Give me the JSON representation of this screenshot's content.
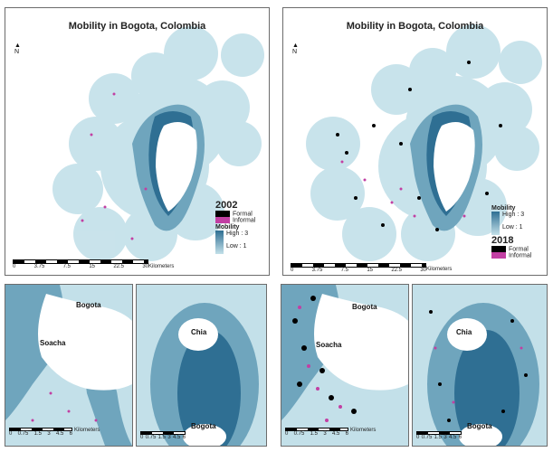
{
  "maps": {
    "top_left": {
      "title": "Mobility in Bogota, Colombia",
      "north": "N",
      "year": "2002",
      "legend": {
        "formal": "Formal",
        "informal": "Informal",
        "mobility_title": "Mobility",
        "high": "High : 3",
        "low": "Low : 1"
      },
      "scale": {
        "ticks": [
          "0",
          "3.75",
          "7.5",
          "15",
          "22.5",
          "30"
        ],
        "unit": "Kilometers"
      }
    },
    "top_right": {
      "title": "Mobility in Bogota, Colombia",
      "north": "N",
      "year": "2018",
      "legend": {
        "formal": "Formal",
        "informal": "Informal",
        "mobility_title": "Mobility",
        "high": "High : 3",
        "low": "Low : 1"
      },
      "scale": {
        "ticks": [
          "0",
          "3.75",
          "7.5",
          "15",
          "22.5",
          "30"
        ],
        "unit": "Kilometers"
      }
    },
    "inset_a": {
      "labels": [
        "Bogota",
        "Soacha"
      ],
      "scale": {
        "ticks": [
          "0",
          "0.75",
          "1.5",
          "3",
          "4.5",
          "6"
        ],
        "unit": "Kilometers"
      }
    },
    "inset_b": {
      "labels": [
        "Chia",
        "Bogota"
      ],
      "scale": {
        "ticks": [
          "0",
          "0.75",
          "1.5",
          "3",
          "4.5",
          "6"
        ],
        "unit": "Kilometers"
      }
    },
    "inset_c": {
      "labels": [
        "Bogota",
        "Soacha"
      ],
      "scale": {
        "ticks": [
          "0",
          "0.75",
          "1.5",
          "3",
          "4.5",
          "6"
        ],
        "unit": "Kilometers"
      }
    },
    "inset_d": {
      "labels": [
        "Chia",
        "Bogota"
      ],
      "scale": {
        "ticks": [
          "0",
          "0.75",
          "1.5",
          "3",
          "4.5",
          "6"
        ],
        "unit": "Kilometers"
      }
    }
  },
  "colors": {
    "high": "#2f6f93",
    "mid": "#6fa5bd",
    "low": "#c3e0e9",
    "formal": "#000000",
    "informal": "#c23fa3"
  }
}
